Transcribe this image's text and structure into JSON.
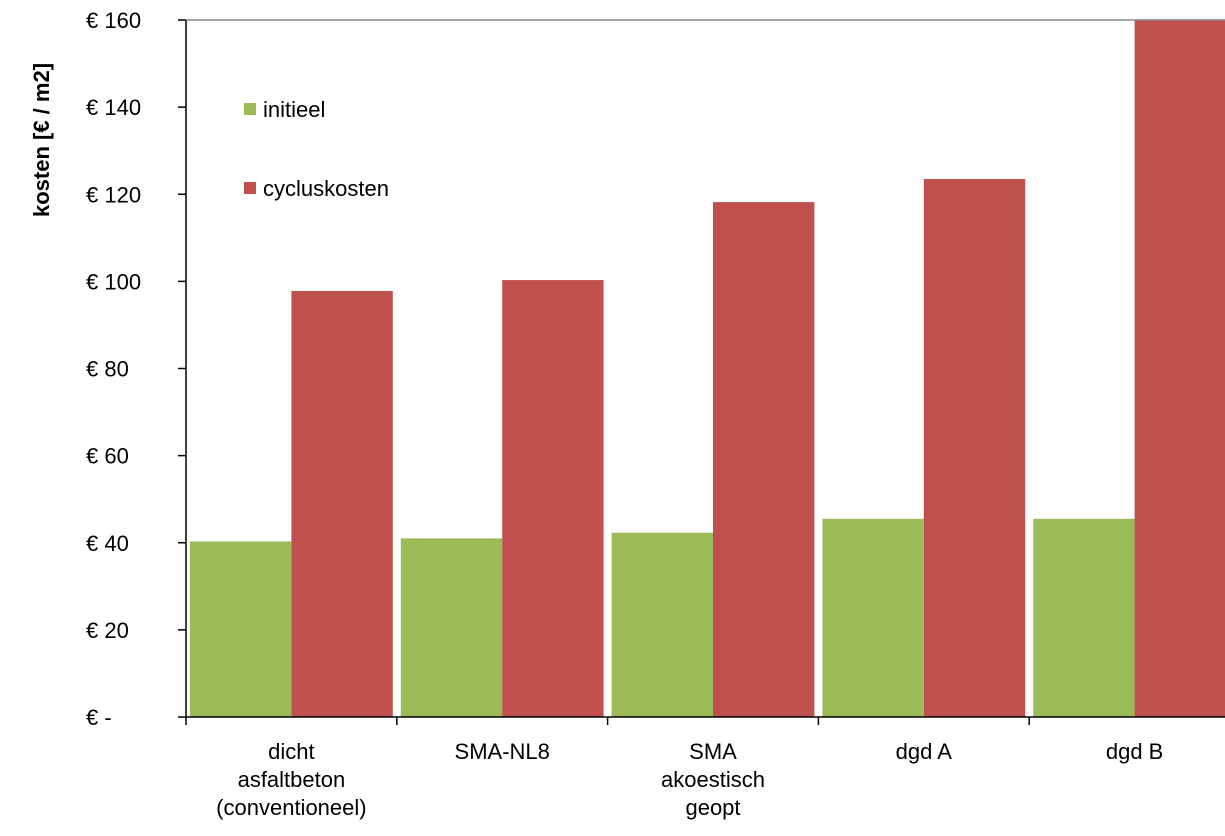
{
  "chart_data": {
    "type": "bar",
    "title": "",
    "xlabel": "",
    "ylabel": "kosten [€ / m2]",
    "ylim": [
      0,
      160
    ],
    "y_ticks": [
      0,
      20,
      40,
      60,
      80,
      100,
      120,
      140,
      160
    ],
    "y_tick_labels": [
      "€ -",
      "€ 20",
      "€ 40",
      "€ 60",
      "€ 80",
      "€ 100",
      "€ 120",
      "€ 140",
      "€ 160"
    ],
    "categories": [
      [
        "dicht",
        "asfaltbeton",
        "(conventioneel)"
      ],
      [
        "SMA-NL8"
      ],
      [
        "SMA",
        "akoestisch",
        "geopt"
      ],
      [
        "dgd A"
      ],
      [
        "dgd B"
      ]
    ],
    "series": [
      {
        "name": "initieel",
        "color": "#9bbb59",
        "values": [
          40.3,
          41.0,
          42.3,
          45.5,
          45.5
        ]
      },
      {
        "name": "cycluskosten",
        "color": "#c0504d",
        "values": [
          97.8,
          100.3,
          118.2,
          123.5,
          160
        ]
      }
    ],
    "legend_position": "top-left (inside plot)",
    "grid": false
  }
}
